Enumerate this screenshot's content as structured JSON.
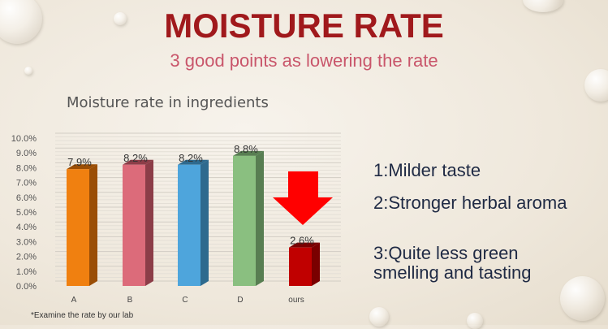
{
  "slide": {
    "title": "MOISTURE RATE",
    "subtitle": "3 good points as lowering the rate",
    "points": [
      "1:Milder taste",
      "2:Stronger herbal aroma",
      "3:Quite less green smelling and tasting"
    ],
    "footnote": "*Examine the rate by our lab"
  },
  "chart_data": {
    "type": "bar",
    "title": "Moisture rate in ingredients",
    "categories": [
      "A",
      "B",
      "C",
      "D",
      "ours"
    ],
    "values": [
      7.9,
      8.2,
      8.2,
      8.8,
      2.6
    ],
    "data_labels": [
      "7.9%",
      "8.2%",
      "8.2%",
      "8.8%",
      "2.6%"
    ],
    "colors": [
      "#f08010",
      "#dc6b7a",
      "#4ea5dc",
      "#8abf80",
      "#c00000"
    ],
    "side_colors": [
      "#9a4e06",
      "#8c3d48",
      "#2e6a8e",
      "#587e52",
      "#7a0000"
    ],
    "ylim": [
      0,
      10
    ],
    "yticks": [
      "0.0%",
      "1.0%",
      "2.0%",
      "3.0%",
      "4.0%",
      "5.0%",
      "6.0%",
      "7.0%",
      "8.0%",
      "9.0%",
      "10.0%"
    ],
    "grid": true,
    "three_d": true,
    "annotation": "red-down-arrow",
    "arrow_color": "#ff0000"
  }
}
